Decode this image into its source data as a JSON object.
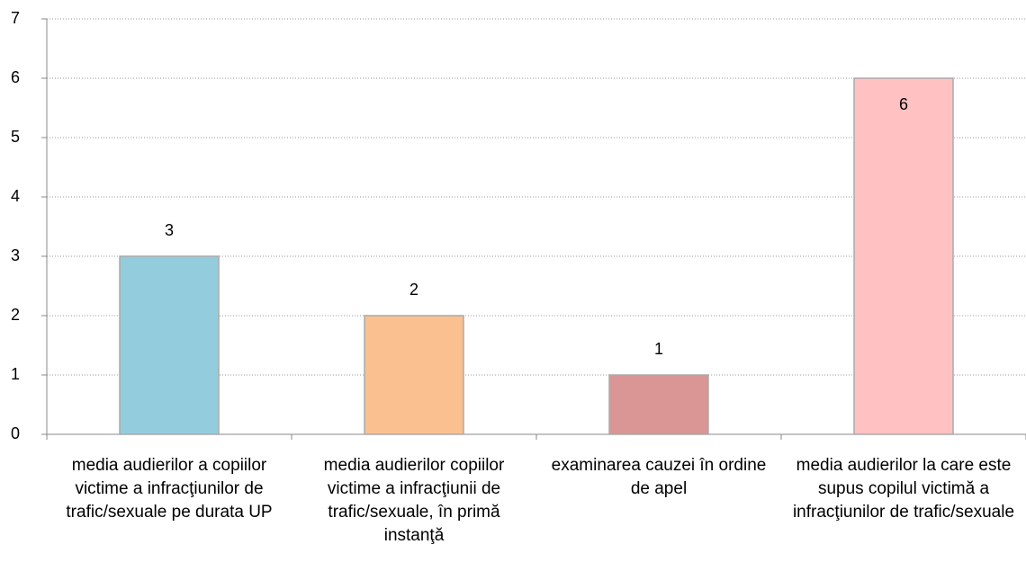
{
  "chart_data": {
    "type": "bar",
    "categories": [
      "media audierilor a copiilor victime a infracţiunilor de trafic/sexuale pe durata UP",
      "media audierilor copiilor victime a infracţiunii de trafic/sexuale, în primă instanţă",
      "examinarea cauzei în ordine de apel",
      "media audierilor la care este supus copilul victimă a infracţiunilor de trafic/sexuale"
    ],
    "values": [
      3,
      2,
      1,
      6
    ],
    "colors": [
      "#93cddd",
      "#fac090",
      "#d99694",
      "#ffc1c1"
    ],
    "ylim": [
      0,
      7
    ],
    "yticks": [
      0,
      1,
      2,
      3,
      4,
      5,
      6,
      7
    ],
    "grid": true
  }
}
